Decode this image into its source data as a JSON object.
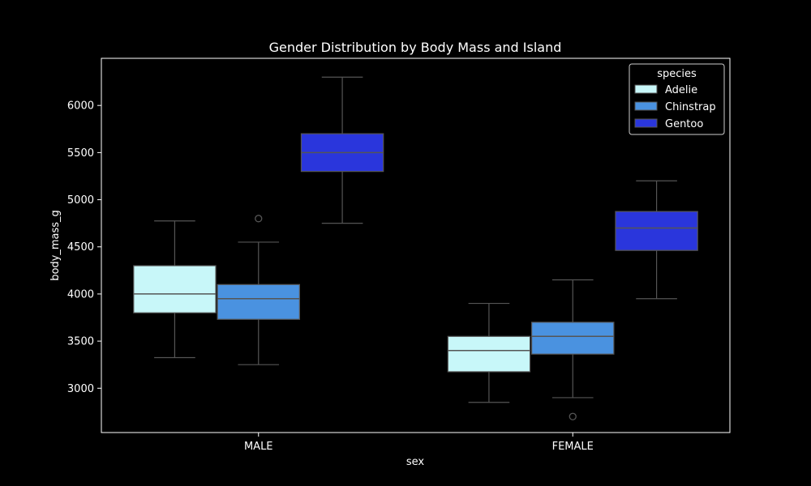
{
  "chart_data": {
    "type": "box",
    "title": "Gender Distribution by Body Mass and Island",
    "xlabel": "sex",
    "ylabel": "body_mass_g",
    "categories": [
      "MALE",
      "FEMALE"
    ],
    "ylim": [
      2530,
      6500
    ],
    "yticks": [
      3000,
      3500,
      4000,
      4500,
      5000,
      5500,
      6000
    ],
    "legend": {
      "title": "species",
      "position": "top-right"
    },
    "series": [
      {
        "name": "Adelie",
        "color": "#c8f7f9",
        "boxes": [
          {
            "category": "MALE",
            "whisker_low": 3325,
            "q1": 3800,
            "median": 4000,
            "q3": 4300,
            "whisker_high": 4775,
            "outliers": []
          },
          {
            "category": "FEMALE",
            "whisker_low": 2850,
            "q1": 3175,
            "median": 3400,
            "q3": 3550,
            "whisker_high": 3900,
            "outliers": []
          }
        ]
      },
      {
        "name": "Chinstrap",
        "color": "#4a92e0",
        "boxes": [
          {
            "category": "MALE",
            "whisker_low": 3250,
            "q1": 3731,
            "median": 3950,
            "q3": 4100,
            "whisker_high": 4550,
            "outliers": [
              4800
            ]
          },
          {
            "category": "FEMALE",
            "whisker_low": 2900,
            "q1": 3362,
            "median": 3550,
            "q3": 3700,
            "whisker_high": 4150,
            "outliers": [
              2700
            ]
          }
        ]
      },
      {
        "name": "Gentoo",
        "color": "#2a36dc",
        "boxes": [
          {
            "category": "MALE",
            "whisker_low": 4750,
            "q1": 5300,
            "median": 5500,
            "q3": 5700,
            "whisker_high": 6300,
            "outliers": []
          },
          {
            "category": "FEMALE",
            "whisker_low": 3950,
            "q1": 4462,
            "median": 4700,
            "q3": 4875,
            "whisker_high": 5200,
            "outliers": []
          }
        ]
      }
    ]
  }
}
